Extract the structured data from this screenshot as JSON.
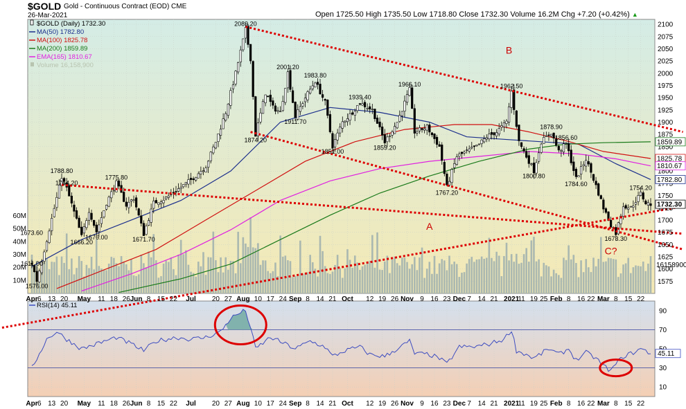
{
  "header": {
    "symbol": "$GOLD",
    "description": "Gold - Continuous Contract (EOD) CME",
    "date": "26-Mar-2021",
    "ohlc": "Open 1725.50  High 1735.50  Low 1718.80  Close 1732.30  Volume 16.2M  Chg +7.20 (+0.42%)",
    "ohlc_arrow": "▲"
  },
  "legend": [
    {
      "text": "$GOLD (Daily) 1732.30",
      "color": "#000000",
      "marker": "candle"
    },
    {
      "text": "MA(50) 1782.80",
      "color": "#1c2f8c",
      "marker": "line"
    },
    {
      "text": "MA(100) 1825.78",
      "color": "#d01010",
      "marker": "line"
    },
    {
      "text": "MA(200) 1859.89",
      "color": "#1a7a1a",
      "marker": "line"
    },
    {
      "text": "EMA(165) 1810.67",
      "color": "#e020e0",
      "marker": "line"
    },
    {
      "text": "Volume 16,158,900",
      "color": "#b8c4b0",
      "marker": "bar"
    }
  ],
  "rsi_legend": "RSI(14) 45.11",
  "colors": {
    "price_bg_top": "#d4ece6",
    "price_bg_bottom": "#f5e9b4",
    "rsi_bg_top": "#d4e0ee",
    "rsi_bg_bottom": "#f4cfb4",
    "candle": "#000000",
    "volume": "#aab8b0",
    "trend": "#dd0000",
    "rsi_line": "#3c4cc0",
    "rsi_fill": "#6aa8a0"
  },
  "chart_data": {
    "type": "line",
    "price_axis": {
      "min": 1550,
      "max": 2110,
      "ticks": [
        2100,
        2075,
        2050,
        2025,
        2000,
        1975,
        1950,
        1925,
        1900,
        1875,
        1850,
        1825,
        1800,
        1775,
        1750,
        1725,
        1700,
        1675,
        1650,
        1625,
        1600,
        1575
      ],
      "labels_boxed": [
        {
          "value": 1859.89,
          "text": "1859.89",
          "color": "#1a7a1a"
        },
        {
          "value": 1825.78,
          "text": "1825.78",
          "color": "#d01010"
        },
        {
          "value": 1810.67,
          "text": "1810.67",
          "color": "#e020e0"
        },
        {
          "value": 1782.8,
          "text": "1782.80",
          "color": "#1c2f8c"
        },
        {
          "value": 1732.3,
          "text": "1732.30",
          "color": "#000000"
        }
      ]
    },
    "volume_axis": {
      "max": 75,
      "ticks": [
        {
          "v": 60,
          "t": "60M"
        },
        {
          "v": 50,
          "t": "50M"
        },
        {
          "v": 40,
          "t": "40M"
        },
        {
          "v": 30,
          "t": "30M"
        },
        {
          "v": 20,
          "t": "20M"
        },
        {
          "v": 10,
          "t": "10M"
        }
      ],
      "last": "16158900"
    },
    "x_axis": {
      "count": 250,
      "ticks": [
        {
          "i": 0,
          "t": "Apr",
          "b": true
        },
        {
          "i": 3,
          "t": "6"
        },
        {
          "i": 8,
          "t": "13"
        },
        {
          "i": 13,
          "t": "20"
        },
        {
          "i": 21,
          "t": "May",
          "b": true
        },
        {
          "i": 28,
          "t": "11"
        },
        {
          "i": 33,
          "t": "18"
        },
        {
          "i": 38,
          "t": "26"
        },
        {
          "i": 42,
          "t": "Jun",
          "b": true
        },
        {
          "i": 47,
          "t": "8"
        },
        {
          "i": 52,
          "t": "15"
        },
        {
          "i": 57,
          "t": "22"
        },
        {
          "i": 64,
          "t": "Jul",
          "b": true
        },
        {
          "i": 74,
          "t": "20"
        },
        {
          "i": 79,
          "t": "27"
        },
        {
          "i": 85,
          "t": "Aug",
          "b": true
        },
        {
          "i": 91,
          "t": "10"
        },
        {
          "i": 96,
          "t": "17"
        },
        {
          "i": 101,
          "t": "24"
        },
        {
          "i": 106,
          "t": "Sep",
          "b": true
        },
        {
          "i": 111,
          "t": "8"
        },
        {
          "i": 116,
          "t": "14"
        },
        {
          "i": 121,
          "t": "21"
        },
        {
          "i": 127,
          "t": "Oct",
          "b": true
        },
        {
          "i": 136,
          "t": "12"
        },
        {
          "i": 141,
          "t": "19"
        },
        {
          "i": 146,
          "t": "26"
        },
        {
          "i": 151,
          "t": "Nov",
          "b": true
        },
        {
          "i": 157,
          "t": "9"
        },
        {
          "i": 162,
          "t": "16"
        },
        {
          "i": 167,
          "t": "23"
        },
        {
          "i": 172,
          "t": "Dec",
          "b": true
        },
        {
          "i": 176,
          "t": "7"
        },
        {
          "i": 181,
          "t": "14"
        },
        {
          "i": 186,
          "t": "21"
        },
        {
          "i": 193,
          "t": "2021",
          "b": true
        },
        {
          "i": 197,
          "t": "11"
        },
        {
          "i": 202,
          "t": "19"
        },
        {
          "i": 206,
          "t": "25"
        },
        {
          "i": 211,
          "t": "Feb",
          "b": true
        },
        {
          "i": 216,
          "t": "8"
        },
        {
          "i": 221,
          "t": "16"
        },
        {
          "i": 225,
          "t": "22"
        },
        {
          "i": 230,
          "t": "Mar",
          "b": true
        },
        {
          "i": 235,
          "t": "8"
        },
        {
          "i": 240,
          "t": "15"
        },
        {
          "i": 245,
          "t": "22"
        }
      ]
    },
    "price_anchors": [
      [
        0,
        1611
      ],
      [
        2,
        1576
      ],
      [
        6,
        1660
      ],
      [
        10,
        1745
      ],
      [
        12,
        1788.8
      ],
      [
        14,
        1764.2
      ],
      [
        18,
        1700
      ],
      [
        20,
        1666.2
      ],
      [
        23,
        1720
      ],
      [
        26,
        1676
      ],
      [
        30,
        1735
      ],
      [
        34,
        1775.8
      ],
      [
        38,
        1730
      ],
      [
        41,
        1745
      ],
      [
        45,
        1671.7
      ],
      [
        49,
        1735
      ],
      [
        54,
        1745
      ],
      [
        58,
        1760
      ],
      [
        64,
        1782
      ],
      [
        70,
        1810
      ],
      [
        74,
        1860
      ],
      [
        78,
        1920
      ],
      [
        82,
        2000
      ],
      [
        86,
        2089.2
      ],
      [
        88,
        2030
      ],
      [
        90,
        1874.2
      ],
      [
        94,
        1960
      ],
      [
        97,
        1930
      ],
      [
        100,
        1920
      ],
      [
        103,
        2001.2
      ],
      [
        106,
        1911.7
      ],
      [
        110,
        1950
      ],
      [
        114,
        1983.8
      ],
      [
        118,
        1940
      ],
      [
        121,
        1851
      ],
      [
        125,
        1900
      ],
      [
        128,
        1915
      ],
      [
        132,
        1939.4
      ],
      [
        137,
        1925
      ],
      [
        142,
        1859.2
      ],
      [
        147,
        1900
      ],
      [
        152,
        1966.1
      ],
      [
        154,
        1880
      ],
      [
        159,
        1890
      ],
      [
        164,
        1850
      ],
      [
        167,
        1767.2
      ],
      [
        171,
        1830
      ],
      [
        175,
        1840
      ],
      [
        179,
        1850
      ],
      [
        183,
        1870
      ],
      [
        187,
        1880
      ],
      [
        191,
        1900
      ],
      [
        193,
        1962.5
      ],
      [
        196,
        1860
      ],
      [
        199,
        1830
      ],
      [
        202,
        1800.8
      ],
      [
        205,
        1860
      ],
      [
        209,
        1878.9
      ],
      [
        212,
        1840
      ],
      [
        215,
        1856.6
      ],
      [
        219,
        1784.6
      ],
      [
        223,
        1825
      ],
      [
        227,
        1770
      ],
      [
        230,
        1725
      ],
      [
        233,
        1690
      ],
      [
        235,
        1673.3
      ],
      [
        238,
        1730
      ],
      [
        241,
        1725
      ],
      [
        245,
        1754.2
      ],
      [
        247,
        1735
      ],
      [
        249,
        1732.3
      ]
    ],
    "point_labels": [
      {
        "i": 86,
        "v": 2089.2,
        "t": "2089.20",
        "pos": "above"
      },
      {
        "i": 103,
        "v": 2001.2,
        "t": "2001.20",
        "pos": "above"
      },
      {
        "i": 114,
        "v": 1983.8,
        "t": "1983.80",
        "pos": "above"
      },
      {
        "i": 152,
        "v": 1966.1,
        "t": "1966.10",
        "pos": "above"
      },
      {
        "i": 193,
        "v": 1962.5,
        "t": "1962.50",
        "pos": "above"
      },
      {
        "i": 132,
        "v": 1939.4,
        "t": "1939.40",
        "pos": "above"
      },
      {
        "i": 106,
        "v": 1911.7,
        "t": "1911.70",
        "pos": "below"
      },
      {
        "i": 209,
        "v": 1878.9,
        "t": "1878.90",
        "pos": "above"
      },
      {
        "i": 90,
        "v": 1874.2,
        "t": "1874.20",
        "pos": "below"
      },
      {
        "i": 215,
        "v": 1856.6,
        "t": "1856.60",
        "pos": "above"
      },
      {
        "i": 121,
        "v": 1851.0,
        "t": "1851.00",
        "pos": "below"
      },
      {
        "i": 142,
        "v": 1859.2,
        "t": "1859.20",
        "pos": "below"
      },
      {
        "i": 202,
        "v": 1800.8,
        "t": "1800.80",
        "pos": "below"
      },
      {
        "i": 219,
        "v": 1784.6,
        "t": "1784.60",
        "pos": "below"
      },
      {
        "i": 12,
        "v": 1788.8,
        "t": "1788.80",
        "pos": "above"
      },
      {
        "i": 34,
        "v": 1775.8,
        "t": "1775.80",
        "pos": "above"
      },
      {
        "i": 14,
        "v": 1764.2,
        "t": "1764.20",
        "pos": "above"
      },
      {
        "i": 167,
        "v": 1767.2,
        "t": "1767.20",
        "pos": "below"
      },
      {
        "i": 245,
        "v": 1754.2,
        "t": "1754.20",
        "pos": "above"
      },
      {
        "i": 20,
        "v": 1666.2,
        "t": "1666.20",
        "pos": "below"
      },
      {
        "i": 26,
        "v": 1676.0,
        "t": "1676.00",
        "pos": "below"
      },
      {
        "i": 45,
        "v": 1671.7,
        "t": "1671.70",
        "pos": "below"
      },
      {
        "i": 235,
        "v": 1673.3,
        "t": "1673.30",
        "pos": "below"
      },
      {
        "i": 0,
        "v": 1673.6,
        "t": "1673.60",
        "pos": "left"
      },
      {
        "i": 0,
        "v": 1611.0,
        "t": "1611.00",
        "pos": "left"
      },
      {
        "i": 2,
        "v": 1576.0,
        "t": "1576.00",
        "pos": "below"
      }
    ],
    "moving_averages": [
      {
        "name": "MA(50)",
        "color": "#1c2f8c",
        "points": [
          [
            0,
            1605
          ],
          [
            20,
            1660
          ],
          [
            40,
            1700
          ],
          [
            60,
            1740
          ],
          [
            80,
            1800
          ],
          [
            100,
            1900
          ],
          [
            120,
            1930
          ],
          [
            140,
            1920
          ],
          [
            160,
            1900
          ],
          [
            175,
            1870
          ],
          [
            190,
            1865
          ],
          [
            205,
            1860
          ],
          [
            220,
            1855
          ],
          [
            235,
            1815
          ],
          [
            249,
            1782.8
          ]
        ]
      },
      {
        "name": "MA(100)",
        "color": "#d01010",
        "points": [
          [
            10,
            1560
          ],
          [
            30,
            1600
          ],
          [
            50,
            1640
          ],
          [
            70,
            1700
          ],
          [
            90,
            1760
          ],
          [
            110,
            1820
          ],
          [
            130,
            1860
          ],
          [
            150,
            1885
          ],
          [
            170,
            1895
          ],
          [
            185,
            1895
          ],
          [
            200,
            1880
          ],
          [
            215,
            1862
          ],
          [
            230,
            1840
          ],
          [
            249,
            1825.78
          ]
        ]
      },
      {
        "name": "EMA(165)",
        "color": "#e020e0",
        "points": [
          [
            20,
            1555
          ],
          [
            40,
            1590
          ],
          [
            60,
            1630
          ],
          [
            80,
            1680
          ],
          [
            100,
            1740
          ],
          [
            120,
            1780
          ],
          [
            140,
            1805
          ],
          [
            160,
            1820
          ],
          [
            180,
            1830
          ],
          [
            200,
            1840
          ],
          [
            220,
            1835
          ],
          [
            235,
            1825
          ],
          [
            249,
            1810.67
          ]
        ]
      },
      {
        "name": "MA(200)",
        "color": "#1a7a1a",
        "points": [
          [
            35,
            1552
          ],
          [
            60,
            1580
          ],
          [
            80,
            1610
          ],
          [
            100,
            1660
          ],
          [
            120,
            1710
          ],
          [
            140,
            1755
          ],
          [
            160,
            1790
          ],
          [
            180,
            1820
          ],
          [
            200,
            1845
          ],
          [
            215,
            1855
          ],
          [
            230,
            1858
          ],
          [
            249,
            1859.89
          ]
        ]
      }
    ],
    "trendlines": [
      {
        "from": [
          86,
          2095
        ],
        "to": [
          262,
          1880
        ]
      },
      {
        "from": [
          88,
          1880
        ],
        "to": [
          262,
          1640
        ]
      },
      {
        "from": [
          12,
          1772
        ],
        "to": [
          262,
          1672
        ]
      },
      {
        "from": [
          -12,
          1480
        ],
        "to": [
          262,
          1728
        ]
      }
    ],
    "wave_labels": [
      {
        "i": 192,
        "v": 2040,
        "t": "B"
      },
      {
        "i": 160,
        "v": 1680,
        "t": "A"
      },
      {
        "i": 233,
        "v": 1630,
        "t": "C?"
      }
    ],
    "rsi": {
      "ticks": [
        90,
        70,
        50,
        30,
        10
      ],
      "current": 45.11,
      "anchors": [
        [
          0,
          30
        ],
        [
          6,
          60
        ],
        [
          10,
          68
        ],
        [
          14,
          60
        ],
        [
          20,
          50
        ],
        [
          26,
          55
        ],
        [
          34,
          62
        ],
        [
          40,
          55
        ],
        [
          45,
          48
        ],
        [
          50,
          58
        ],
        [
          58,
          62
        ],
        [
          64,
          60
        ],
        [
          70,
          62
        ],
        [
          76,
          68
        ],
        [
          80,
          82
        ],
        [
          84,
          88
        ],
        [
          86,
          90
        ],
        [
          88,
          72
        ],
        [
          90,
          50
        ],
        [
          96,
          62
        ],
        [
          102,
          55
        ],
        [
          106,
          50
        ],
        [
          112,
          58
        ],
        [
          118,
          52
        ],
        [
          121,
          42
        ],
        [
          126,
          48
        ],
        [
          132,
          52
        ],
        [
          136,
          44
        ],
        [
          142,
          42
        ],
        [
          147,
          50
        ],
        [
          152,
          58
        ],
        [
          154,
          45
        ],
        [
          160,
          44
        ],
        [
          164,
          40
        ],
        [
          167,
          34
        ],
        [
          172,
          52
        ],
        [
          178,
          52
        ],
        [
          184,
          55
        ],
        [
          190,
          60
        ],
        [
          193,
          70
        ],
        [
          195,
          48
        ],
        [
          199,
          44
        ],
        [
          202,
          40
        ],
        [
          208,
          50
        ],
        [
          212,
          44
        ],
        [
          216,
          50
        ],
        [
          219,
          38
        ],
        [
          223,
          46
        ],
        [
          227,
          40
        ],
        [
          230,
          32
        ],
        [
          233,
          27
        ],
        [
          235,
          34
        ],
        [
          238,
          42
        ],
        [
          242,
          46
        ],
        [
          245,
          50
        ],
        [
          249,
          45.11
        ]
      ]
    }
  }
}
